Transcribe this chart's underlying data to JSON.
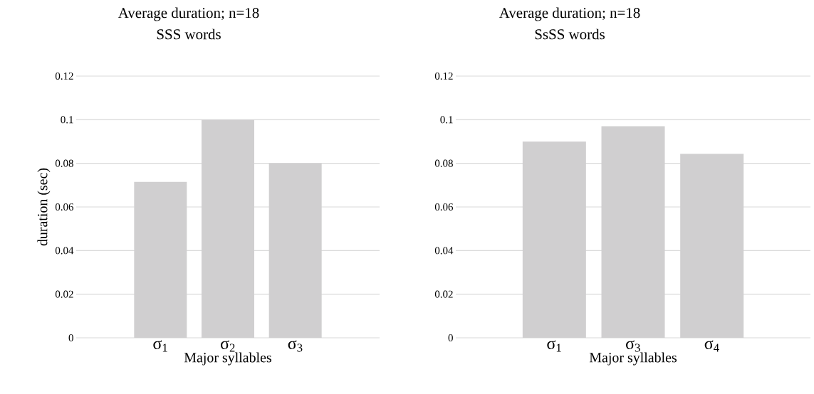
{
  "chart_data": [
    {
      "type": "bar",
      "title": "Average duration; n=18",
      "subtitle": "SSS words",
      "xlabel": "Major syllables",
      "ylabel": "duration (sec)",
      "categories": [
        "σ$_{1}$",
        "σ$_{2}$",
        "σ$_{3}$"
      ],
      "values": [
        0.0715,
        0.1,
        0.08
      ],
      "color": "#d0cfd0",
      "ylim": [
        0,
        0.12
      ],
      "yticks": [
        0,
        0.02,
        0.04,
        0.06,
        0.08,
        0.1,
        0.12
      ],
      "grid": "y"
    },
    {
      "type": "bar",
      "title": "Average duration; n=18",
      "subtitle": "SsSS words",
      "xlabel": "Major syllables",
      "categories": [
        "σ$_{1}$",
        "σ$_{3}$",
        "σ$_{4}$"
      ],
      "values": [
        0.09,
        0.097,
        0.0844
      ],
      "color": "#d0cfd0",
      "ylim": [
        0,
        0.12
      ],
      "yticks": [
        0,
        0.02,
        0.04,
        0.06,
        0.08,
        0.1,
        0.12
      ],
      "grid": "y"
    }
  ]
}
